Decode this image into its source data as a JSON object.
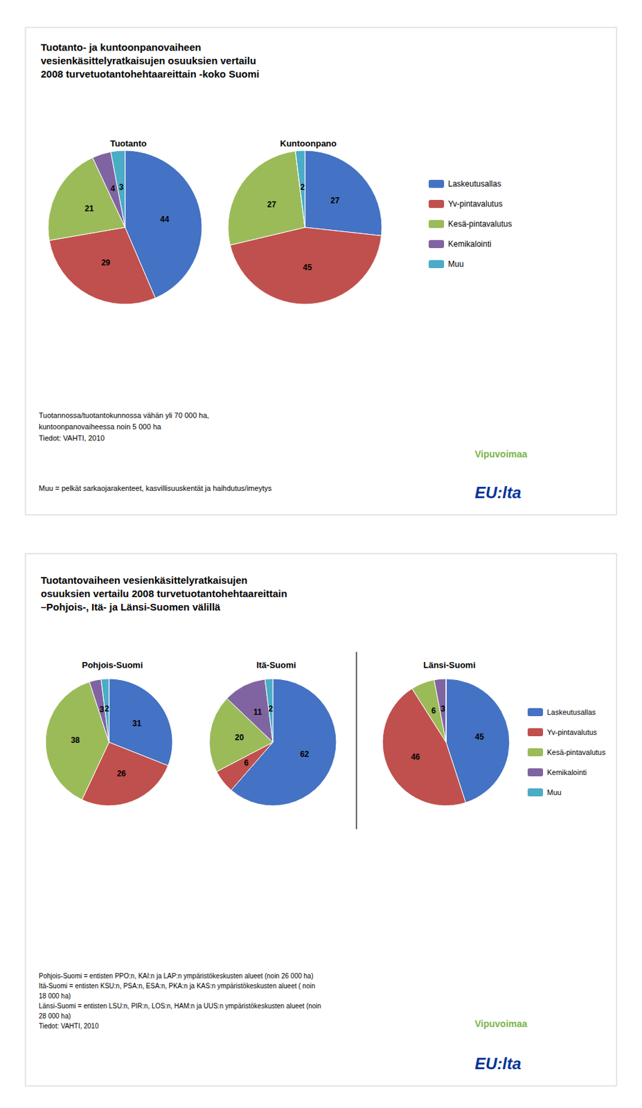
{
  "chart_data": [
    {
      "type": "pie",
      "title": "Tuotanto- ja kuntoonpanovaiheen\nvesienkäsittelyratkaisujen osuuksien vertailu\n2008 turvetuotantohehtaareittain -koko Suomi",
      "categories": [
        "Laskeutusallas",
        "Yv-pintavalutus",
        "Kesä-pintavalutus",
        "Kemikalointi",
        "Muu"
      ],
      "colors": [
        "#4472C4",
        "#C0504D",
        "#9BBB59",
        "#8064A2",
        "#4BACC6"
      ],
      "legend": "right",
      "data_labels": true,
      "series": [
        {
          "name": "Tuotanto",
          "values": [
            44,
            29,
            21,
            4,
            3
          ]
        },
        {
          "name": "Kuntoonpano",
          "values": [
            27,
            45,
            27,
            0,
            2
          ]
        }
      ],
      "annotations": [
        {
          "text": "Tuotannossa/tuotantokunnossa vähän yli 70 000 ha,\nkuntoonpanovaiheessa noin 5 000 ha\nTiedot: VAHTI, 2010"
        },
        {
          "text": "Muu = pelkät sarkaojarakenteet, kasvillisuuskentät ja haihdutus/imeytys"
        },
        {
          "text": "Vipuvoimaa",
          "color": "#7AB648"
        },
        {
          "text": "EU:lta",
          "color": "#003399"
        }
      ]
    },
    {
      "type": "pie",
      "title": "Tuotantovaiheen vesienkäsittelyratkaisujen\nosuuksien vertailu 2008 turvetuotantohehtaareittain\n–Pohjois-, Itä- ja Länsi-Suomen välillä",
      "categories": [
        "Laskeutusallas",
        "Yv-pintavalutus",
        "Kesä-pintavalutus",
        "Kemikalointi",
        "Muu"
      ],
      "colors": [
        "#4472C4",
        "#C0504D",
        "#9BBB59",
        "#8064A2",
        "#4BACC6"
      ],
      "legend": "right",
      "data_labels": true,
      "series": [
        {
          "name": "Pohjois-Suomi",
          "values": [
            31,
            26,
            38,
            3,
            2
          ]
        },
        {
          "name": "Itä-Suomi",
          "values": [
            62,
            6,
            20,
            11,
            2
          ]
        },
        {
          "name": "Länsi-Suomi",
          "values": [
            45,
            46,
            6,
            3,
            0
          ]
        }
      ],
      "annotations": [
        {
          "text": "Pohjois-Suomi = entisten PPO:n, KAI:n ja LAP:n ympäristökeskusten alueet (noin 26 000 ha)\nItä-Suomi = entisten KSU:n, PSA:n, ESA:n, PKA:n ja KAS:n ympäristökeskusten alueet ( noin\n18 000 ha)\nLänsi-Suomi = entisten LSU:n, PIR:n, LOS:n, HAM:n ja UUS:n ympäristökeskusten alueet (noin\n28 000 ha)\nTiedot: VAHTI, 2010"
        },
        {
          "text": "Vipuvoimaa",
          "color": "#7AB648"
        },
        {
          "text": "EU:lta",
          "color": "#003399"
        }
      ]
    }
  ]
}
